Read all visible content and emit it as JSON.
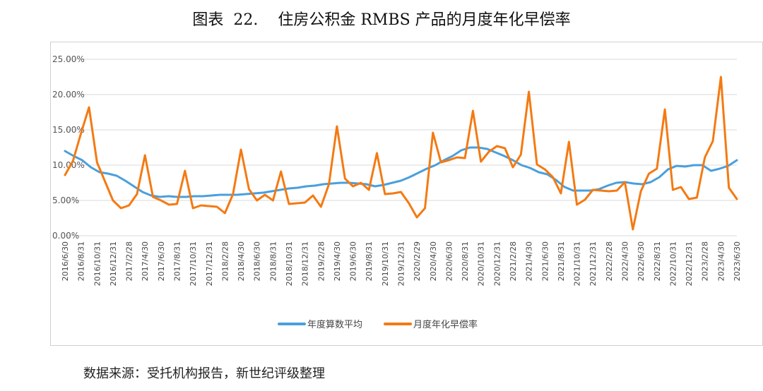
{
  "figure": {
    "label": "图表",
    "number": "22.",
    "title": "住房公积金 RMBS 产品的月度年化早偿率",
    "source": "数据来源：受托机构报告，新世纪评级整理"
  },
  "chart_data": {
    "type": "line",
    "title": "住房公积金 RMBS 产品的月度年化早偿率",
    "xlabel": "",
    "ylabel": "",
    "ylim": [
      0,
      25
    ],
    "yticks": [
      "0.00%",
      "5.00%",
      "10.00%",
      "15.00%",
      "20.00%",
      "25.00%"
    ],
    "grid": true,
    "legend_position": "bottom",
    "x_tick_labels": [
      "2016/6/30",
      "2016/8/31",
      "2016/10/31",
      "2016/12/31",
      "2017/2/28",
      "2017/4/30",
      "2017/6/30",
      "2017/8/31",
      "2017/10/31",
      "2017/12/31",
      "2018/2/28",
      "2018/4/30",
      "2018/6/30",
      "2018/8/31",
      "2018/10/31",
      "2018/12/31",
      "2019/2/28",
      "2019/4/30",
      "2019/6/30",
      "2019/8/31",
      "2019/10/31",
      "2019/12/31",
      "2020/2/29",
      "2020/4/30",
      "2020/6/30",
      "2020/8/31",
      "2020/10/31",
      "2020/12/31",
      "2021/2/28",
      "2021/4/30",
      "2021/6/30",
      "2021/8/31",
      "2021/10/31",
      "2021/12/31",
      "2022/2/28",
      "2022/4/30",
      "2022/6/30",
      "2022/8/31",
      "2022/10/31",
      "2022/12/31",
      "2023/2/28",
      "2023/4/30",
      "2023/6/30"
    ],
    "series": [
      {
        "name": "年度算数平均",
        "color": "#4a9fdc",
        "values": [
          12.0,
          11.3,
          10.7,
          9.7,
          9.0,
          8.8,
          8.5,
          7.8,
          7.0,
          6.2,
          5.7,
          5.5,
          5.6,
          5.5,
          5.5,
          5.6,
          5.6,
          5.7,
          5.8,
          5.8,
          5.8,
          5.9,
          6.0,
          6.1,
          6.3,
          6.5,
          6.7,
          6.8,
          7.0,
          7.1,
          7.3,
          7.4,
          7.5,
          7.5,
          7.4,
          7.3,
          7.0,
          7.2,
          7.5,
          7.8,
          8.3,
          8.9,
          9.5,
          10.0,
          10.7,
          11.3,
          12.1,
          12.5,
          12.5,
          12.3,
          11.8,
          11.3,
          10.7,
          10.0,
          9.6,
          9.0,
          8.7,
          7.9,
          6.9,
          6.4,
          6.4,
          6.4,
          6.6,
          7.1,
          7.5,
          7.6,
          7.4,
          7.3,
          7.6,
          8.3,
          9.4,
          9.9,
          9.8,
          10.0,
          10.0,
          9.2,
          9.5,
          9.9,
          10.7
        ]
      },
      {
        "name": "月度年化早偿率",
        "color": "#f47a12",
        "values": [
          8.6,
          10.6,
          14.5,
          18.2,
          10.4,
          7.7,
          5.0,
          3.9,
          4.3,
          5.9,
          11.4,
          5.5,
          5.0,
          4.4,
          4.5,
          9.2,
          3.9,
          4.3,
          4.2,
          4.1,
          3.2,
          5.9,
          12.2,
          6.6,
          5.0,
          5.8,
          5.0,
          9.1,
          4.5,
          4.6,
          4.7,
          5.7,
          4.1,
          7.3,
          15.5,
          8.1,
          7.0,
          7.5,
          6.5,
          11.7,
          5.9,
          6.0,
          6.2,
          4.6,
          2.6,
          3.9,
          14.6,
          10.4,
          10.7,
          11.1,
          11.0,
          17.7,
          10.5,
          11.9,
          12.7,
          12.4,
          9.7,
          11.5,
          20.4,
          10.1,
          9.4,
          8.3,
          6.0,
          13.3,
          4.4,
          5.1,
          6.5,
          6.4,
          6.3,
          6.4,
          7.6,
          0.9,
          6.3,
          8.8,
          9.5,
          17.9,
          6.5,
          6.9,
          5.2,
          5.4,
          11.1,
          13.4,
          22.5,
          6.8,
          5.2
        ]
      }
    ]
  }
}
